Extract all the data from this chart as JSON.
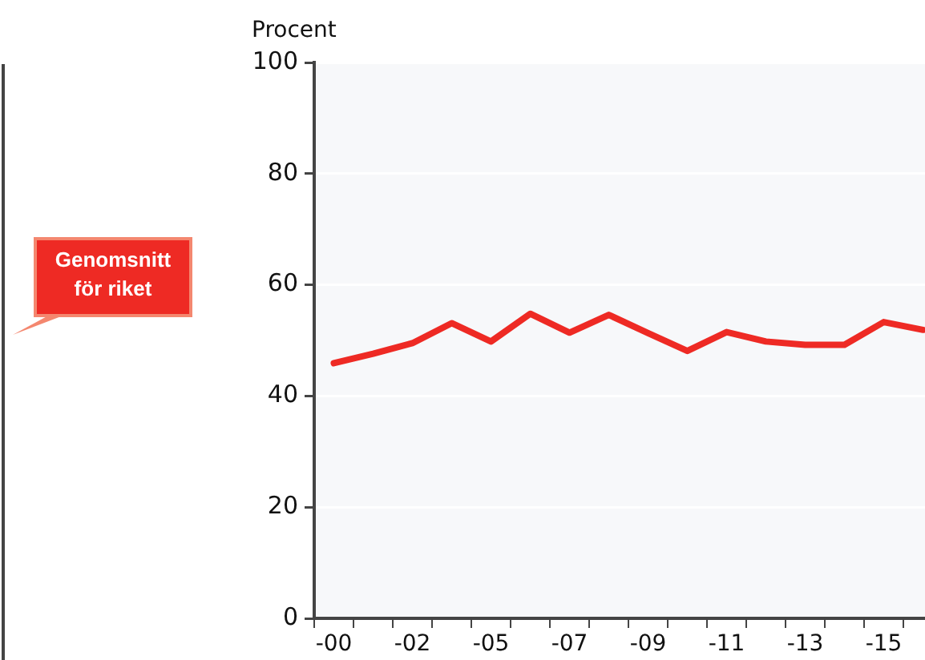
{
  "chart_data": {
    "type": "line",
    "ylabel": "Procent",
    "categories": [
      "-00",
      null,
      "-02",
      null,
      "-05",
      null,
      "-07",
      null,
      "-09",
      null,
      "-11",
      null,
      "-13",
      null,
      "-15",
      null
    ],
    "series": [
      {
        "name": "Genomsnitt för riket",
        "color": "#ee2a24",
        "values": [
          45.9,
          47.6,
          49.5,
          53.1,
          49.8,
          54.8,
          51.4,
          54.6,
          51.3,
          48.1,
          51.5,
          49.8,
          49.2,
          49.2,
          53.3,
          51.9
        ]
      }
    ],
    "ylim": [
      0,
      100
    ],
    "yticks": [
      0,
      20,
      40,
      60,
      80,
      100
    ],
    "grid": "y",
    "legend": "left",
    "marker": "none",
    "line_style": "solid"
  }
}
